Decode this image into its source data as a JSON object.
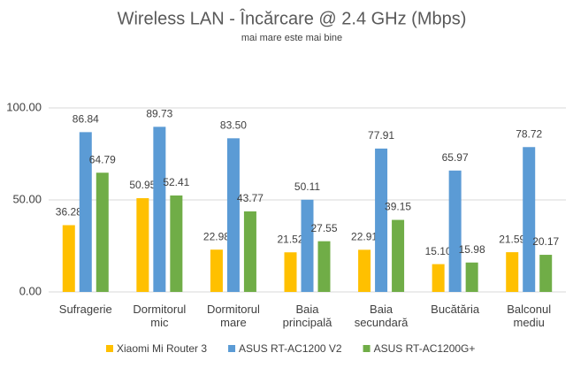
{
  "chart_data": {
    "type": "bar",
    "title": "Wireless LAN - Încărcare @ 2.4 GHz (Mbps)",
    "subtitle": "mai mare este mai bine",
    "categories": [
      "Sufragerie",
      "Dormitorul mic",
      "Dormitorul mare",
      "Baia principală",
      "Baia secundară",
      "Bucătăria",
      "Balconul mediu"
    ],
    "series": [
      {
        "name": "Xiaomi Mi Router 3",
        "color": "#FFC000",
        "values": [
          36.28,
          50.95,
          22.98,
          21.52,
          22.91,
          15.1,
          21.59
        ],
        "value_labels": [
          "36.28",
          "50.95",
          "22.98",
          "21.52",
          "22.91",
          "15.10",
          "21.59"
        ]
      },
      {
        "name": "ASUS RT-AC1200 V2",
        "color": "#5B9BD5",
        "values": [
          86.84,
          89.73,
          83.5,
          50.11,
          77.91,
          65.97,
          78.72
        ],
        "value_labels": [
          "86.84",
          "89.73",
          "83.50",
          "50.11",
          "77.91",
          "65.97",
          "78.72"
        ]
      },
      {
        "name": "ASUS RT-AC1200G+",
        "color": "#70AD47",
        "values": [
          64.79,
          52.41,
          43.77,
          27.55,
          39.15,
          15.98,
          20.17
        ],
        "value_labels": [
          "64.79",
          "52.41",
          "43.77",
          "27.55",
          "39.15",
          "15.98",
          "20.17"
        ]
      }
    ],
    "ylim": [
      0,
      100
    ],
    "yticks": [
      {
        "value": 0,
        "label": "0.00"
      },
      {
        "value": 50,
        "label": "50.00"
      },
      {
        "value": 100,
        "label": "100.00"
      }
    ],
    "grid": true,
    "legend": "bottom"
  }
}
